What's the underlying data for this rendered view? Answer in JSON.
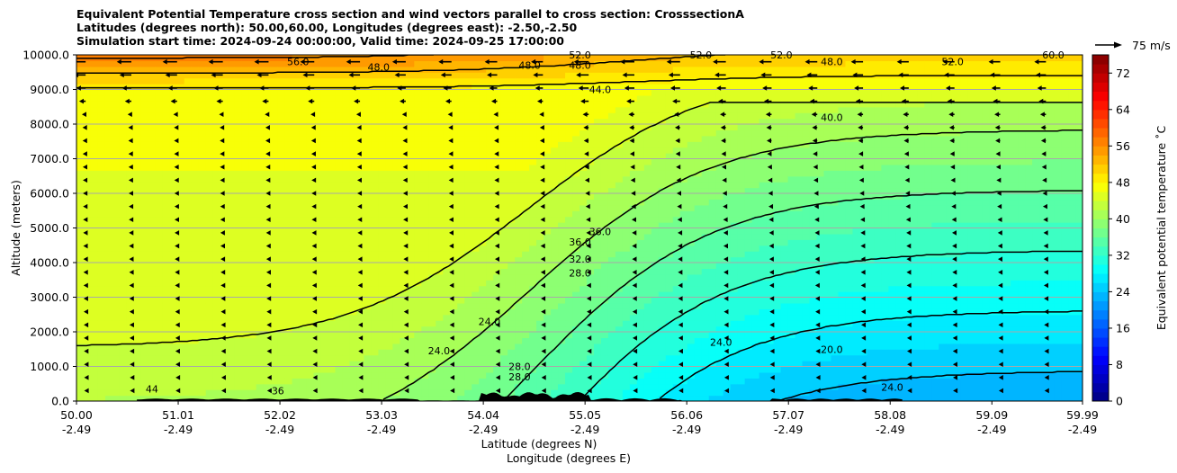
{
  "title_lines": [
    "Equivalent Potential Temperature cross section and wind vectors parallel to cross section: CrosssectionA",
    "Latitudes (degrees north): 50.00,60.00, Longitudes (degrees east): -2.50,-2.50",
    "Simulation start time: 2024-09-24 00:00:00, Valid time: 2024-09-25 17:00:00"
  ],
  "chart_data": {
    "type": "heatmap",
    "subtype": "filled contour cross-section with contour lines and wind quiver",
    "ylabel": "Altitude (meters)",
    "xlabel_line1": "Latitude (degrees N)",
    "xlabel_line2": "Longitude (degrees E)",
    "ylim": [
      0,
      10000
    ],
    "xlim": [
      50.0,
      59.99
    ],
    "y_ticks": [
      "0.0",
      "1000.0",
      "2000.0",
      "3000.0",
      "4000.0",
      "5000.0",
      "6000.0",
      "7000.0",
      "8000.0",
      "9000.0",
      "10000.0"
    ],
    "x_ticks": [
      {
        "lat": "50.00",
        "lon": "-2.49"
      },
      {
        "lat": "51.01",
        "lon": "-2.49"
      },
      {
        "lat": "52.02",
        "lon": "-2.49"
      },
      {
        "lat": "53.03",
        "lon": "-2.49"
      },
      {
        "lat": "54.04",
        "lon": "-2.49"
      },
      {
        "lat": "55.05",
        "lon": "-2.49"
      },
      {
        "lat": "56.06",
        "lon": "-2.49"
      },
      {
        "lat": "57.07",
        "lon": "-2.49"
      },
      {
        "lat": "58.08",
        "lon": "-2.49"
      },
      {
        "lat": "59.09",
        "lon": "-2.49"
      },
      {
        "lat": "59.99",
        "lon": "-2.49"
      }
    ],
    "horizontal_grid": true,
    "colorbar": {
      "label": "Equivalent potential temperature ˚C",
      "min": 0,
      "max": 76,
      "step": 2,
      "tick_values": [
        0,
        8,
        16,
        24,
        32,
        40,
        48,
        56,
        64,
        72
      ],
      "tick_labels": [
        "0",
        "8",
        "16",
        "24",
        "32",
        "40",
        "48",
        "56",
        "64",
        "72"
      ],
      "colormap": "jet"
    },
    "quiver_key": "75 m/s",
    "contour_labels": [
      {
        "text": "56.0",
        "lat": 52.2,
        "alt": 9800
      },
      {
        "text": "48.0",
        "lat": 53.0,
        "alt": 9650
      },
      {
        "text": "52.0",
        "lat": 55.0,
        "alt": 10000
      },
      {
        "text": "48.0",
        "lat": 54.5,
        "alt": 9700
      },
      {
        "text": "48.0",
        "lat": 55.0,
        "alt": 9700
      },
      {
        "text": "44.0",
        "lat": 55.2,
        "alt": 9000
      },
      {
        "text": "52.0",
        "lat": 56.2,
        "alt": 10000
      },
      {
        "text": "52.0",
        "lat": 57.0,
        "alt": 10000
      },
      {
        "text": "48.0",
        "lat": 57.5,
        "alt": 9800
      },
      {
        "text": "52.0",
        "lat": 58.7,
        "alt": 9800
      },
      {
        "text": "60.0",
        "lat": 59.7,
        "alt": 10000
      },
      {
        "text": "40.0",
        "lat": 57.5,
        "alt": 8200
      },
      {
        "text": "36.0",
        "lat": 55.0,
        "alt": 4600
      },
      {
        "text": "36.0",
        "lat": 55.2,
        "alt": 4900
      },
      {
        "text": "32.0",
        "lat": 55.0,
        "alt": 4100
      },
      {
        "text": "28.0",
        "lat": 55.0,
        "alt": 3700
      },
      {
        "text": "24.0",
        "lat": 54.1,
        "alt": 2300
      },
      {
        "text": "24.0",
        "lat": 53.6,
        "alt": 1450
      },
      {
        "text": "28.0",
        "lat": 54.4,
        "alt": 1000
      },
      {
        "text": "28.0",
        "lat": 54.4,
        "alt": 700
      },
      {
        "text": "24.0",
        "lat": 56.4,
        "alt": 1700
      },
      {
        "text": "20.0",
        "lat": 57.5,
        "alt": 1500
      },
      {
        "text": "24.0",
        "lat": 58.1,
        "alt": 400
      },
      {
        "text": "44",
        "lat": 50.75,
        "alt": 350
      },
      {
        "text": "36",
        "lat": 52.0,
        "alt": 300
      }
    ],
    "field_shape": "theta_e increases with height; ~40-44 near surface in south (50-53N), decreasing to ~20-24 at low levels north of 56N; >52 above 9000 m in the south",
    "wind": "winds directed toward lower latitude (leftward arrows), strongest above 8000 m in the south"
  }
}
